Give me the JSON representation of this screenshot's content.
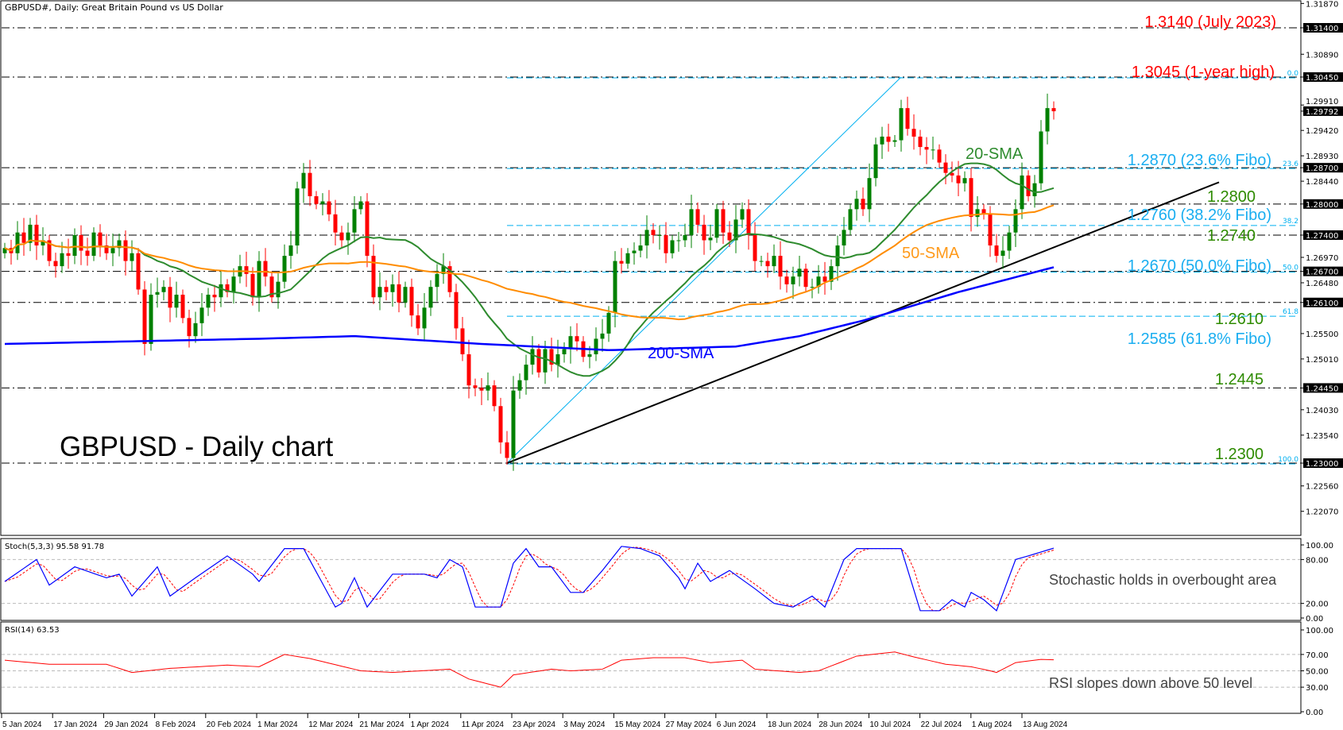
{
  "header": {
    "title": "GBPUSD#, Daily:  Great Britain Pound vs US Dollar"
  },
  "chart_title": "GBPUSD - Daily chart",
  "colors": {
    "bull": "#008000",
    "bear": "#ff0000",
    "sma20": "#2e8b2e",
    "sma50": "#ff8c00",
    "sma200": "#0000ff",
    "fibo": "#00b0f0",
    "trendline": "#000000",
    "stoch_k": "#0000ff",
    "stoch_d": "#ff0000",
    "rsi": "#ff0000",
    "level_red": "#ff0000",
    "level_green": "#2e8b00"
  },
  "annotations": {
    "level_1_3140": "1.3140 (July 2023)",
    "level_1_3045": "1.3045 (1-year high)",
    "fibo_236": "1.2870 (23.6% Fibo)",
    "fibo_382": "1.2760 (38.2% Fibo)",
    "fibo_500": "1.2670 (50.0% Fibo)",
    "fibo_618": "1.2585 (61.8% Fibo)",
    "level_1_2800": "1.2800",
    "level_1_2740": "1.2740",
    "level_1_2610": "1.2610",
    "level_1_2445": "1.2445",
    "level_1_2300": "1.2300",
    "sma20_label": "20-SMA",
    "sma50_label": "50-SMA",
    "sma200_label": "200-SMA",
    "stoch_note": "Stochastic holds in overbought area",
    "rsi_note": "RSI slopes down above 50 level"
  },
  "chart_data": [
    {
      "type": "candlestick",
      "title": "GBPUSD - Daily chart",
      "ylim": [
        1.2158,
        1.3196
      ],
      "y_ticks": [
        "1.31870",
        "1.31400",
        "1.30890",
        "1.30450",
        "1.29910",
        "1.29792",
        "1.29420",
        "1.28930",
        "1.28700",
        "1.28440",
        "1.28000",
        "1.27400",
        "1.26970",
        "1.26700",
        "1.26480",
        "1.26100",
        "1.25500",
        "1.25010",
        "1.24450",
        "1.24030",
        "1.23540",
        "1.23000",
        "1.22560",
        "1.22070"
      ],
      "y_tick_highlighted": [
        "1.31400",
        "1.30450",
        "1.29792",
        "1.28700",
        "1.28000",
        "1.27400",
        "1.26700",
        "1.26100",
        "1.24450",
        "1.23000"
      ],
      "x_ticks": [
        "5 Jan 2024",
        "17 Jan 2024",
        "29 Jan 2024",
        "8 Feb 2024",
        "20 Feb 2024",
        "1 Mar 2024",
        "12 Mar 2024",
        "21 Mar 2024",
        "1 Apr 2024",
        "11 Apr 2024",
        "23 Apr 2024",
        "3 May 2024",
        "15 May 2024",
        "27 May 2024",
        "6 Jun 2024",
        "18 Jun 2024",
        "28 Jun 2024",
        "10 Jul 2024",
        "22 Jul 2024",
        "1 Aug 2024",
        "13 Aug 2024"
      ],
      "last_price": 1.29792,
      "close": [
        1.2715,
        1.2705,
        1.2745,
        1.2725,
        1.276,
        1.272,
        1.273,
        1.269,
        1.268,
        1.2705,
        1.27,
        1.274,
        1.271,
        1.27,
        1.2745,
        1.272,
        1.2705,
        1.2715,
        1.273,
        1.269,
        1.2705,
        1.2635,
        1.253,
        1.2625,
        1.263,
        1.264,
        1.26,
        1.2625,
        1.258,
        1.2545,
        1.257,
        1.26,
        1.2625,
        1.262,
        1.2645,
        1.263,
        1.266,
        1.268,
        1.2665,
        1.262,
        1.269,
        1.266,
        1.262,
        1.265,
        1.27,
        1.272,
        1.283,
        1.286,
        1.2815,
        1.28,
        1.2805,
        1.278,
        1.2745,
        1.273,
        1.2745,
        1.279,
        1.2805,
        1.27,
        1.262,
        1.264,
        1.263,
        1.2645,
        1.261,
        1.264,
        1.2585,
        1.256,
        1.26,
        1.264,
        1.2665,
        1.268,
        1.263,
        1.256,
        1.251,
        1.245,
        1.2445,
        1.244,
        1.245,
        1.241,
        1.234,
        1.231,
        1.244,
        1.246,
        1.249,
        1.252,
        1.2475,
        1.252,
        1.249,
        1.251,
        1.252,
        1.2545,
        1.2535,
        1.2505,
        1.251,
        1.254,
        1.255,
        1.259,
        1.269,
        1.2685,
        1.2705,
        1.271,
        1.272,
        1.275,
        1.274,
        1.274,
        1.2705,
        1.273,
        1.273,
        1.274,
        1.279,
        1.276,
        1.273,
        1.2735,
        1.279,
        1.2745,
        1.273,
        1.277,
        1.279,
        1.274,
        1.269,
        1.269,
        1.268,
        1.27,
        1.266,
        1.2645,
        1.266,
        1.2675,
        1.264,
        1.264,
        1.266,
        1.265,
        1.268,
        1.272,
        1.275,
        1.279,
        1.281,
        1.279,
        1.285,
        1.2915,
        1.293,
        1.292,
        1.2923,
        1.2985,
        1.2945,
        1.293,
        1.291,
        1.2905,
        1.2905,
        1.288,
        1.286,
        1.2855,
        1.284,
        1.285,
        1.2775,
        1.279,
        1.278,
        1.272,
        1.27,
        1.271,
        1.2745,
        1.279,
        1.2855,
        1.2815,
        1.284,
        1.294,
        1.2985,
        1.2979
      ],
      "sma200": [
        {
          "bar": 0,
          "v": 1.253
        },
        {
          "bar": 40,
          "v": 1.254
        },
        {
          "bar": 55,
          "v": 1.2545
        },
        {
          "bar": 75,
          "v": 1.253
        },
        {
          "bar": 95,
          "v": 1.2518
        },
        {
          "bar": 115,
          "v": 1.2525
        },
        {
          "bar": 125,
          "v": 1.2545
        },
        {
          "bar": 135,
          "v": 1.2575
        },
        {
          "bar": 150,
          "v": 1.263
        },
        {
          "bar": 165,
          "v": 1.2678
        }
      ],
      "horizontal_levels": [
        1.314,
        1.3045,
        1.287,
        1.28,
        1.274,
        1.267,
        1.261,
        1.2445,
        1.23
      ],
      "fibonacci": {
        "from": 1.23,
        "to": 1.3045,
        "levels": [
          {
            "label": "0.0",
            "price": 1.3045
          },
          {
            "label": "23.6",
            "price": 1.287
          },
          {
            "label": "38.2",
            "price": 1.276
          },
          {
            "label": "50.0",
            "price": 1.267
          },
          {
            "label": "61.8",
            "price": 1.2585
          },
          {
            "label": "100.0",
            "price": 1.23
          }
        ]
      },
      "trendline": {
        "start": {
          "bar": 79,
          "price": 1.23
        },
        "end": {
          "bar": 191,
          "price": 1.2842
        }
      },
      "fibo_swing_line": {
        "start": {
          "bar": 79,
          "price": 1.23
        },
        "end": {
          "bar": 141,
          "price": 1.3045
        }
      }
    },
    {
      "type": "line",
      "title": "Stoch(5,3,3) 95.58 91.78",
      "ylim": [
        0,
        100
      ],
      "y_ticks": [
        "100.00",
        "80.00",
        "20.00",
        "0.00"
      ],
      "levels": [
        80,
        20
      ],
      "k_last": 95.58,
      "d_last": 91.78,
      "k_points": [
        [
          0,
          50
        ],
        [
          5,
          80
        ],
        [
          7,
          45
        ],
        [
          11,
          70
        ],
        [
          16,
          55
        ],
        [
          18,
          60
        ],
        [
          20,
          30
        ],
        [
          24,
          70
        ],
        [
          26,
          30
        ],
        [
          30,
          55
        ],
        [
          35,
          85
        ],
        [
          39,
          60
        ],
        [
          40,
          50
        ],
        [
          44,
          95
        ],
        [
          47,
          95
        ],
        [
          52,
          15
        ],
        [
          53,
          20
        ],
        [
          55,
          55
        ],
        [
          57,
          15
        ],
        [
          61,
          60
        ],
        [
          66,
          60
        ],
        [
          68,
          55
        ],
        [
          70,
          80
        ],
        [
          72,
          70
        ],
        [
          74,
          15
        ],
        [
          78,
          15
        ],
        [
          80,
          75
        ],
        [
          82,
          95
        ],
        [
          84,
          70
        ],
        [
          86,
          70
        ],
        [
          89,
          35
        ],
        [
          91,
          35
        ],
        [
          94,
          65
        ],
        [
          97,
          98
        ],
        [
          100,
          95
        ],
        [
          103,
          85
        ],
        [
          106,
          55
        ],
        [
          107,
          40
        ],
        [
          109,
          75
        ],
        [
          111,
          50
        ],
        [
          114,
          65
        ],
        [
          118,
          40
        ],
        [
          121,
          20
        ],
        [
          124,
          15
        ],
        [
          127,
          30
        ],
        [
          129,
          15
        ],
        [
          132,
          80
        ],
        [
          134,
          95
        ],
        [
          139,
          95
        ],
        [
          141,
          95
        ],
        [
          144,
          10
        ],
        [
          147,
          10
        ],
        [
          149,
          25
        ],
        [
          151,
          15
        ],
        [
          152,
          35
        ],
        [
          154,
          25
        ],
        [
          156,
          10
        ],
        [
          159,
          80
        ],
        [
          161,
          85
        ],
        [
          165,
          95.58
        ]
      ]
    },
    {
      "type": "line",
      "title": "RSI(14) 63.53",
      "ylim": [
        0,
        100
      ],
      "y_ticks": [
        "100.00",
        "70.00",
        "50.00",
        "30.00",
        "0.00"
      ],
      "levels": [
        70,
        50,
        30
      ],
      "last": 63.53,
      "points": [
        [
          0,
          63
        ],
        [
          7,
          58
        ],
        [
          16,
          58
        ],
        [
          20,
          48
        ],
        [
          26,
          53
        ],
        [
          35,
          57
        ],
        [
          40,
          55
        ],
        [
          44,
          70
        ],
        [
          48,
          65
        ],
        [
          56,
          50
        ],
        [
          61,
          48
        ],
        [
          70,
          52
        ],
        [
          73,
          40
        ],
        [
          78,
          30
        ],
        [
          80,
          45
        ],
        [
          86,
          52
        ],
        [
          89,
          50
        ],
        [
          94,
          52
        ],
        [
          97,
          63
        ],
        [
          102,
          66
        ],
        [
          107,
          66
        ],
        [
          111,
          60
        ],
        [
          116,
          63
        ],
        [
          118,
          52
        ],
        [
          125,
          48
        ],
        [
          128,
          50
        ],
        [
          132,
          62
        ],
        [
          134,
          68
        ],
        [
          140,
          73
        ],
        [
          143,
          67
        ],
        [
          148,
          58
        ],
        [
          152,
          55
        ],
        [
          155,
          50
        ],
        [
          156,
          48
        ],
        [
          159,
          60
        ],
        [
          163,
          64
        ],
        [
          165,
          63.53
        ]
      ]
    }
  ]
}
